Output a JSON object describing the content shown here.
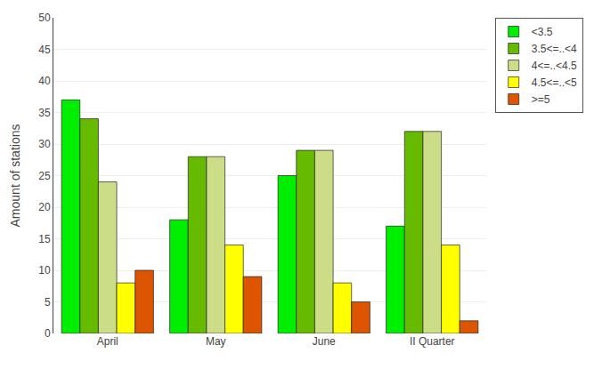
{
  "chart_data": {
    "type": "bar",
    "categories": [
      "April",
      "May",
      "June",
      "II Quarter"
    ],
    "series": [
      {
        "name": "<3.5",
        "values": [
          37,
          18,
          25,
          17
        ],
        "color": "#00EE00"
      },
      {
        "name": "3.5<=..<4",
        "values": [
          34,
          28,
          29,
          32
        ],
        "color": "#66BB00"
      },
      {
        "name": "4<=..<4.5",
        "values": [
          24,
          28,
          29,
          32
        ],
        "color": "#CCDD88"
      },
      {
        "name": "4.5<=..<5",
        "values": [
          8,
          14,
          8,
          14
        ],
        "color": "#FFFF00"
      },
      {
        "name": ">=5",
        "values": [
          10,
          9,
          5,
          2
        ],
        "color": "#DD5500"
      }
    ],
    "ylabel": "Amount of stations",
    "ylim": [
      0,
      50
    ],
    "yticks": [
      0,
      5,
      10,
      15,
      20,
      25,
      30,
      35,
      40,
      45,
      50
    ],
    "grid": true,
    "legend": "upper right"
  }
}
